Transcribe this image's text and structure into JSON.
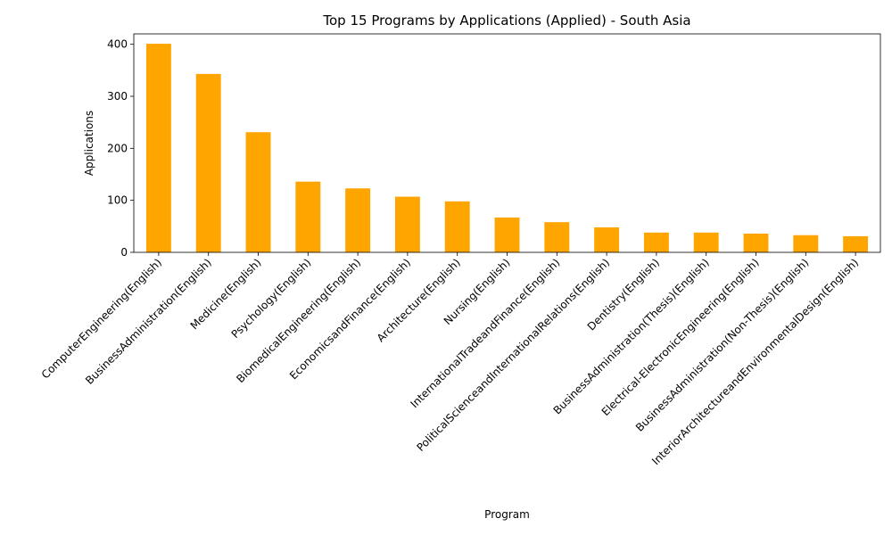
{
  "chart_data": {
    "type": "bar",
    "title": "Top 15 Programs by Applications (Applied) - South Asia",
    "xlabel": "Program",
    "ylabel": "Applications",
    "ylim": [
      0,
      420
    ],
    "yticks": [
      0,
      100,
      200,
      300,
      400
    ],
    "grid": false,
    "bar_color": "#ffa500",
    "categories": [
      "ComputerEngineering(English)",
      "BusinessAdministration(English)",
      "Medicine(English)",
      "Psychology(English)",
      "BiomedicalEngineering(English)",
      "EconomicsandFinance(English)",
      "Architecture(English)",
      "Nursing(English)",
      "InternationalTradeandFinance(English)",
      "PoliticalScienceandInternationalRelations(English)",
      "Dentistry(English)",
      "BusinessAdministration(Thesis)(English)",
      "Electrical-ElectronicEngineering(English)",
      "BusinessAdministration(Non-Thesis)(English)",
      "InteriorArchitectureandEnvironmentalDesign(English)"
    ],
    "values": [
      401,
      343,
      231,
      136,
      123,
      107,
      98,
      67,
      58,
      48,
      38,
      38,
      36,
      33,
      31
    ]
  }
}
